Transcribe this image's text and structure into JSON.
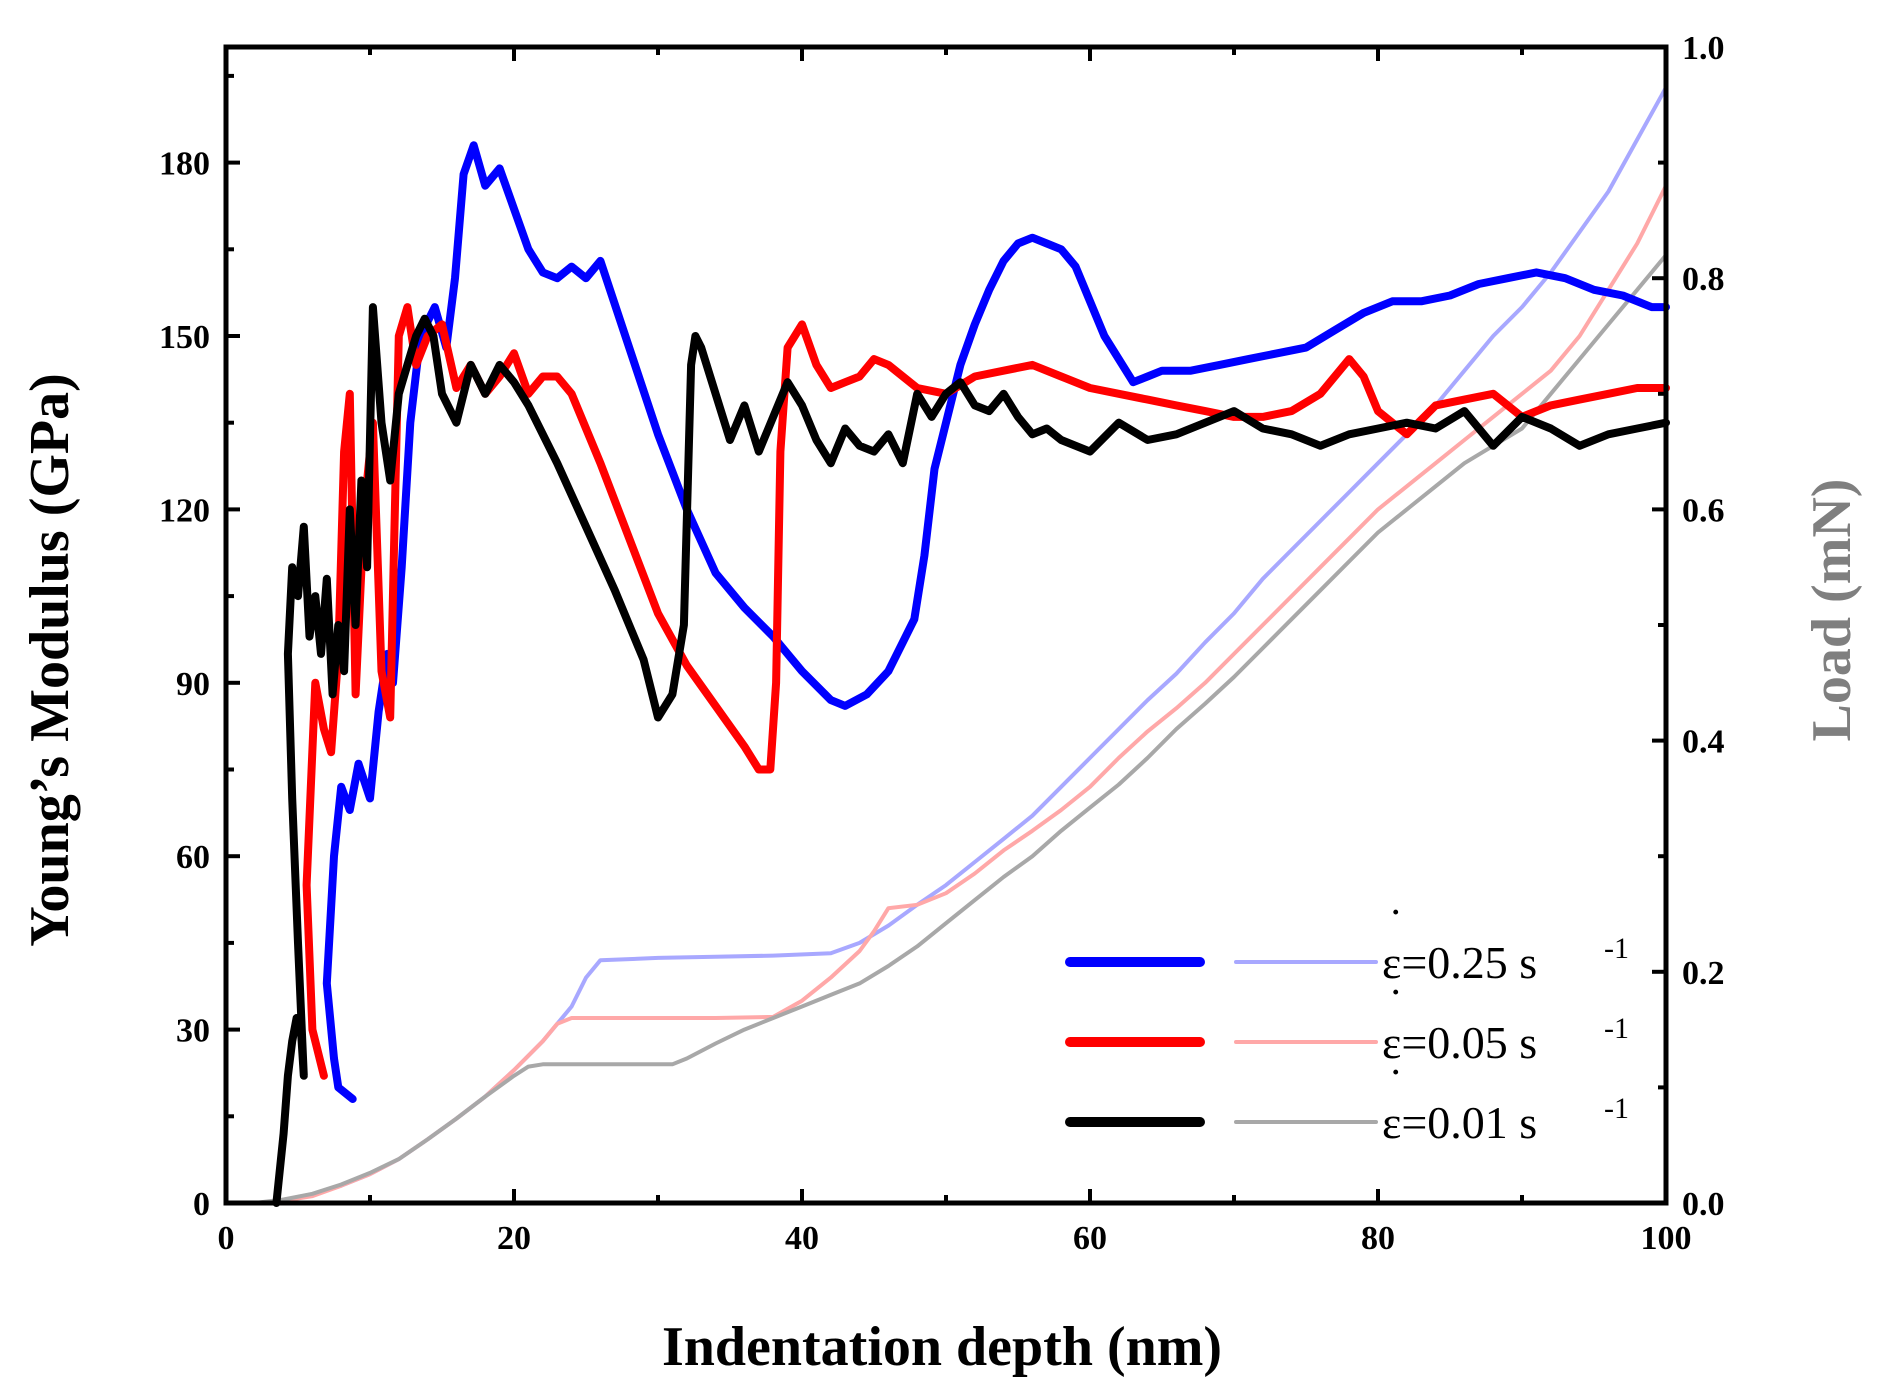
{
  "chart_data": {
    "type": "line",
    "xlabel": "Indentation depth (nm)",
    "ylabel_left": "Young’s Modulus (GPa)",
    "ylabel_right": "Load (mN)",
    "xlim": [
      0,
      100
    ],
    "ylim_left": [
      0,
      200
    ],
    "ylim_right": [
      0,
      1.0
    ],
    "x_ticks": [
      "0",
      "20",
      "40",
      "60",
      "80",
      "100"
    ],
    "y_left_ticks": [
      "0",
      "30",
      "60",
      "90",
      "120",
      "150",
      "180"
    ],
    "y_right_ticks": [
      "0.0",
      "0.2",
      "0.4",
      "0.6",
      "0.8",
      "1.0"
    ],
    "legend_position": "lower-right",
    "colors": {
      "blue": "#0000ff",
      "red": "#ff0000",
      "black": "#000000",
      "blue_light": "#a8a8ff",
      "red_light": "#ffa8a8",
      "gray_light": "#a8a8a8",
      "right_axis_label": "#7f7f7f"
    },
    "series": [
      {
        "name": "modulus 0.25",
        "axis": "left",
        "color": "blue",
        "x": [
          8.8,
          7.8,
          7.5,
          7.0,
          7.5,
          8.0,
          8.6,
          9.2,
          10.0,
          10.6,
          11.2,
          11.6,
          12.2,
          12.8,
          13.5,
          14.5,
          15.3,
          15.9,
          16.5,
          17.2,
          18.0,
          19.0,
          20.0,
          21.0,
          22.0,
          23.0,
          24.0,
          25.0,
          26.0,
          28.0,
          30.0,
          32.0,
          34.0,
          36.0,
          38.0,
          40.0,
          42.0,
          43.0,
          44.5,
          46.0,
          47.0,
          47.8,
          48.5,
          49.2,
          50.0,
          51.0,
          52.0,
          53.0,
          54.0,
          55.0,
          56.0,
          57.0,
          58.0,
          59.0,
          60.0,
          61.0,
          62.0,
          63.0,
          64.0,
          65.0,
          67.0,
          69.0,
          71.0,
          73.0,
          75.0,
          77.0,
          79.0,
          81.0,
          83.0,
          85.0,
          87.0,
          89.0,
          91.0,
          93.0,
          95.0,
          97.0,
          99.0,
          100.0
        ],
        "y": [
          18,
          20,
          25,
          38,
          60,
          72,
          68,
          76,
          70,
          85,
          95,
          90,
          110,
          135,
          150,
          155,
          148,
          160,
          178,
          183,
          176,
          179,
          172,
          165,
          161,
          160,
          162,
          160,
          163,
          148,
          133,
          120,
          109,
          103,
          98,
          92,
          87,
          86,
          88,
          92,
          97,
          101,
          112,
          127,
          135,
          145,
          152,
          158,
          163,
          166,
          167,
          166,
          165,
          162,
          156,
          150,
          146,
          142,
          143,
          144,
          144,
          145,
          146,
          147,
          148,
          151,
          154,
          156,
          156,
          157,
          159,
          160,
          161,
          160,
          158,
          157,
          155,
          155
        ]
      },
      {
        "name": "modulus 0.05",
        "axis": "left",
        "color": "red",
        "x": [
          6.8,
          6.0,
          5.6,
          6.2,
          6.8,
          7.3,
          7.8,
          8.2,
          8.6,
          9.0,
          9.6,
          10.2,
          10.8,
          11.4,
          12.0,
          12.6,
          13.2,
          14.0,
          15.0,
          16.0,
          17.0,
          18.0,
          19.0,
          20.0,
          21.0,
          22.0,
          23.0,
          24.0,
          26.0,
          28.0,
          30.0,
          32.0,
          34.0,
          36.0,
          37.0,
          37.8,
          38.2,
          38.5,
          39.0,
          40.0,
          41.0,
          42.0,
          43.0,
          44.0,
          45.0,
          46.0,
          48.0,
          50.0,
          52.0,
          54.0,
          56.0,
          58.0,
          60.0,
          62.0,
          64.0,
          66.0,
          68.0,
          70.0,
          72.0,
          74.0,
          76.0,
          78.0,
          79.0,
          80.0,
          82.0,
          84.0,
          86.0,
          88.0,
          90.0,
          92.0,
          94.0,
          96.0,
          98.0,
          100.0
        ],
        "y": [
          22,
          30,
          55,
          90,
          82,
          78,
          95,
          130,
          140,
          88,
          120,
          135,
          92,
          84,
          150,
          155,
          145,
          150,
          152,
          141,
          145,
          140,
          143,
          147,
          140,
          143,
          143,
          140,
          128,
          115,
          102,
          93,
          86,
          79,
          75,
          75,
          90,
          130,
          148,
          152,
          145,
          141,
          142,
          143,
          146,
          145,
          141,
          140,
          143,
          144,
          145,
          143,
          141,
          140,
          139,
          138,
          137,
          136,
          136,
          137,
          140,
          146,
          143,
          137,
          133,
          138,
          139,
          140,
          136,
          138,
          139,
          140,
          141,
          141
        ]
      },
      {
        "name": "modulus 0.01",
        "axis": "left",
        "color": "black",
        "x": [
          3.5,
          4.0,
          4.3,
          4.6,
          4.9,
          5.2,
          5.4,
          5.0,
          4.6,
          4.3,
          4.6,
          5.0,
          5.4,
          5.8,
          6.2,
          6.6,
          7.0,
          7.4,
          7.8,
          8.2,
          8.6,
          9.0,
          9.4,
          9.8,
          10.2,
          10.8,
          11.4,
          12.0,
          12.6,
          13.2,
          13.8,
          14.4,
          15.0,
          16.0,
          17.0,
          18.0,
          19.0,
          20.0,
          21.0,
          23.0,
          25.0,
          27.0,
          29.0,
          30.0,
          31.0,
          31.8,
          32.3,
          32.6,
          33.0,
          34.0,
          35.0,
          36.0,
          37.0,
          38.0,
          39.0,
          40.0,
          41.0,
          42.0,
          43.0,
          44.0,
          45.0,
          46.0,
          47.0,
          48.0,
          49.0,
          50.0,
          51.0,
          52.0,
          53.0,
          54.0,
          55.0,
          56.0,
          57.0,
          58.0,
          60.0,
          62.0,
          64.0,
          66.0,
          68.0,
          70.0,
          72.0,
          74.0,
          76.0,
          78.0,
          80.0,
          82.0,
          84.0,
          86.0,
          88.0,
          90.0,
          92.0,
          94.0,
          96.0,
          98.0,
          100.0
        ],
        "y": [
          0,
          12,
          22,
          28,
          32,
          30,
          22,
          45,
          70,
          95,
          110,
          105,
          117,
          98,
          105,
          95,
          108,
          88,
          100,
          92,
          120,
          100,
          125,
          110,
          155,
          135,
          125,
          140,
          145,
          150,
          153,
          150,
          140,
          135,
          145,
          140,
          145,
          142,
          138,
          128,
          117,
          106,
          94,
          84,
          88,
          100,
          145,
          150,
          148,
          140,
          132,
          138,
          130,
          136,
          142,
          138,
          132,
          128,
          134,
          131,
          130,
          133,
          128,
          140,
          136,
          140,
          142,
          138,
          137,
          140,
          136,
          133,
          134,
          132,
          130,
          135,
          132,
          133,
          135,
          137,
          134,
          133,
          131,
          133,
          134,
          135,
          134,
          137,
          131,
          136,
          134,
          131,
          133,
          134,
          135
        ]
      },
      {
        "name": "load 0.25",
        "axis": "right",
        "color": "blue_light",
        "x": [
          0,
          2,
          4,
          6,
          8,
          10,
          12,
          14,
          16,
          18,
          20,
          22,
          24,
          25,
          26,
          28,
          30,
          34,
          38,
          42,
          44,
          46,
          48,
          50,
          52,
          54,
          56,
          58,
          60,
          62,
          64,
          66,
          68,
          70,
          72,
          74,
          76,
          78,
          80,
          82,
          84,
          86,
          88,
          90,
          92,
          94,
          96,
          98,
          100
        ],
        "y": [
          0,
          0.0,
          0.002,
          0.007,
          0.015,
          0.025,
          0.038,
          0.055,
          0.073,
          0.092,
          0.115,
          0.14,
          0.17,
          0.195,
          0.21,
          0.211,
          0.212,
          0.213,
          0.214,
          0.216,
          0.225,
          0.24,
          0.258,
          0.275,
          0.295,
          0.315,
          0.335,
          0.36,
          0.385,
          0.41,
          0.435,
          0.458,
          0.485,
          0.51,
          0.54,
          0.565,
          0.59,
          0.615,
          0.64,
          0.665,
          0.69,
          0.72,
          0.75,
          0.775,
          0.805,
          0.84,
          0.875,
          0.92,
          0.965
        ]
      },
      {
        "name": "load 0.05",
        "axis": "right",
        "color": "red_light",
        "x": [
          0,
          2,
          4,
          6,
          8,
          10,
          12,
          14,
          16,
          18,
          20,
          22,
          23,
          24,
          26,
          30,
          34,
          38,
          40,
          42,
          44,
          45,
          46,
          48,
          50,
          52,
          54,
          56,
          58,
          60,
          62,
          64,
          66,
          68,
          70,
          72,
          74,
          76,
          78,
          80,
          82,
          84,
          86,
          88,
          90,
          92,
          94,
          96,
          98,
          100
        ],
        "y": [
          0,
          0.0,
          0.002,
          0.006,
          0.015,
          0.025,
          0.038,
          0.055,
          0.073,
          0.092,
          0.115,
          0.14,
          0.155,
          0.16,
          0.16,
          0.16,
          0.16,
          0.161,
          0.175,
          0.195,
          0.218,
          0.235,
          0.255,
          0.258,
          0.268,
          0.285,
          0.305,
          0.322,
          0.34,
          0.36,
          0.385,
          0.408,
          0.428,
          0.45,
          0.475,
          0.5,
          0.525,
          0.55,
          0.575,
          0.6,
          0.62,
          0.64,
          0.66,
          0.68,
          0.7,
          0.72,
          0.75,
          0.79,
          0.83,
          0.88
        ]
      },
      {
        "name": "load 0.01",
        "axis": "right",
        "color": "gray_light",
        "x": [
          0,
          2,
          4,
          6,
          8,
          10,
          12,
          14,
          16,
          18,
          20,
          21,
          22,
          24,
          28,
          31,
          32,
          34,
          36,
          38,
          40,
          42,
          44,
          46,
          48,
          50,
          52,
          54,
          56,
          58,
          60,
          62,
          64,
          66,
          68,
          70,
          72,
          74,
          76,
          78,
          80,
          82,
          84,
          86,
          88,
          90,
          92,
          94,
          96,
          98,
          100
        ],
        "y": [
          0,
          0.0,
          0.003,
          0.008,
          0.016,
          0.026,
          0.038,
          0.055,
          0.073,
          0.092,
          0.11,
          0.118,
          0.12,
          0.12,
          0.12,
          0.12,
          0.125,
          0.138,
          0.15,
          0.16,
          0.17,
          0.18,
          0.19,
          0.205,
          0.222,
          0.242,
          0.262,
          0.282,
          0.3,
          0.322,
          0.342,
          0.362,
          0.385,
          0.41,
          0.432,
          0.455,
          0.48,
          0.505,
          0.53,
          0.555,
          0.58,
          0.6,
          0.62,
          0.64,
          0.655,
          0.67,
          0.7,
          0.73,
          0.76,
          0.79,
          0.82
        ]
      }
    ],
    "legend": [
      {
        "label": "ε=0.25 s",
        "superscript": "-1",
        "dot": "˙",
        "dark": "blue",
        "light": "blue_light"
      },
      {
        "label": "ε=0.05 s",
        "superscript": "-1",
        "dot": "˙",
        "dark": "red",
        "light": "red_light"
      },
      {
        "label": "ε=0.01 s",
        "superscript": "-1",
        "dot": "˙",
        "dark": "black",
        "light": "gray_light"
      }
    ]
  }
}
